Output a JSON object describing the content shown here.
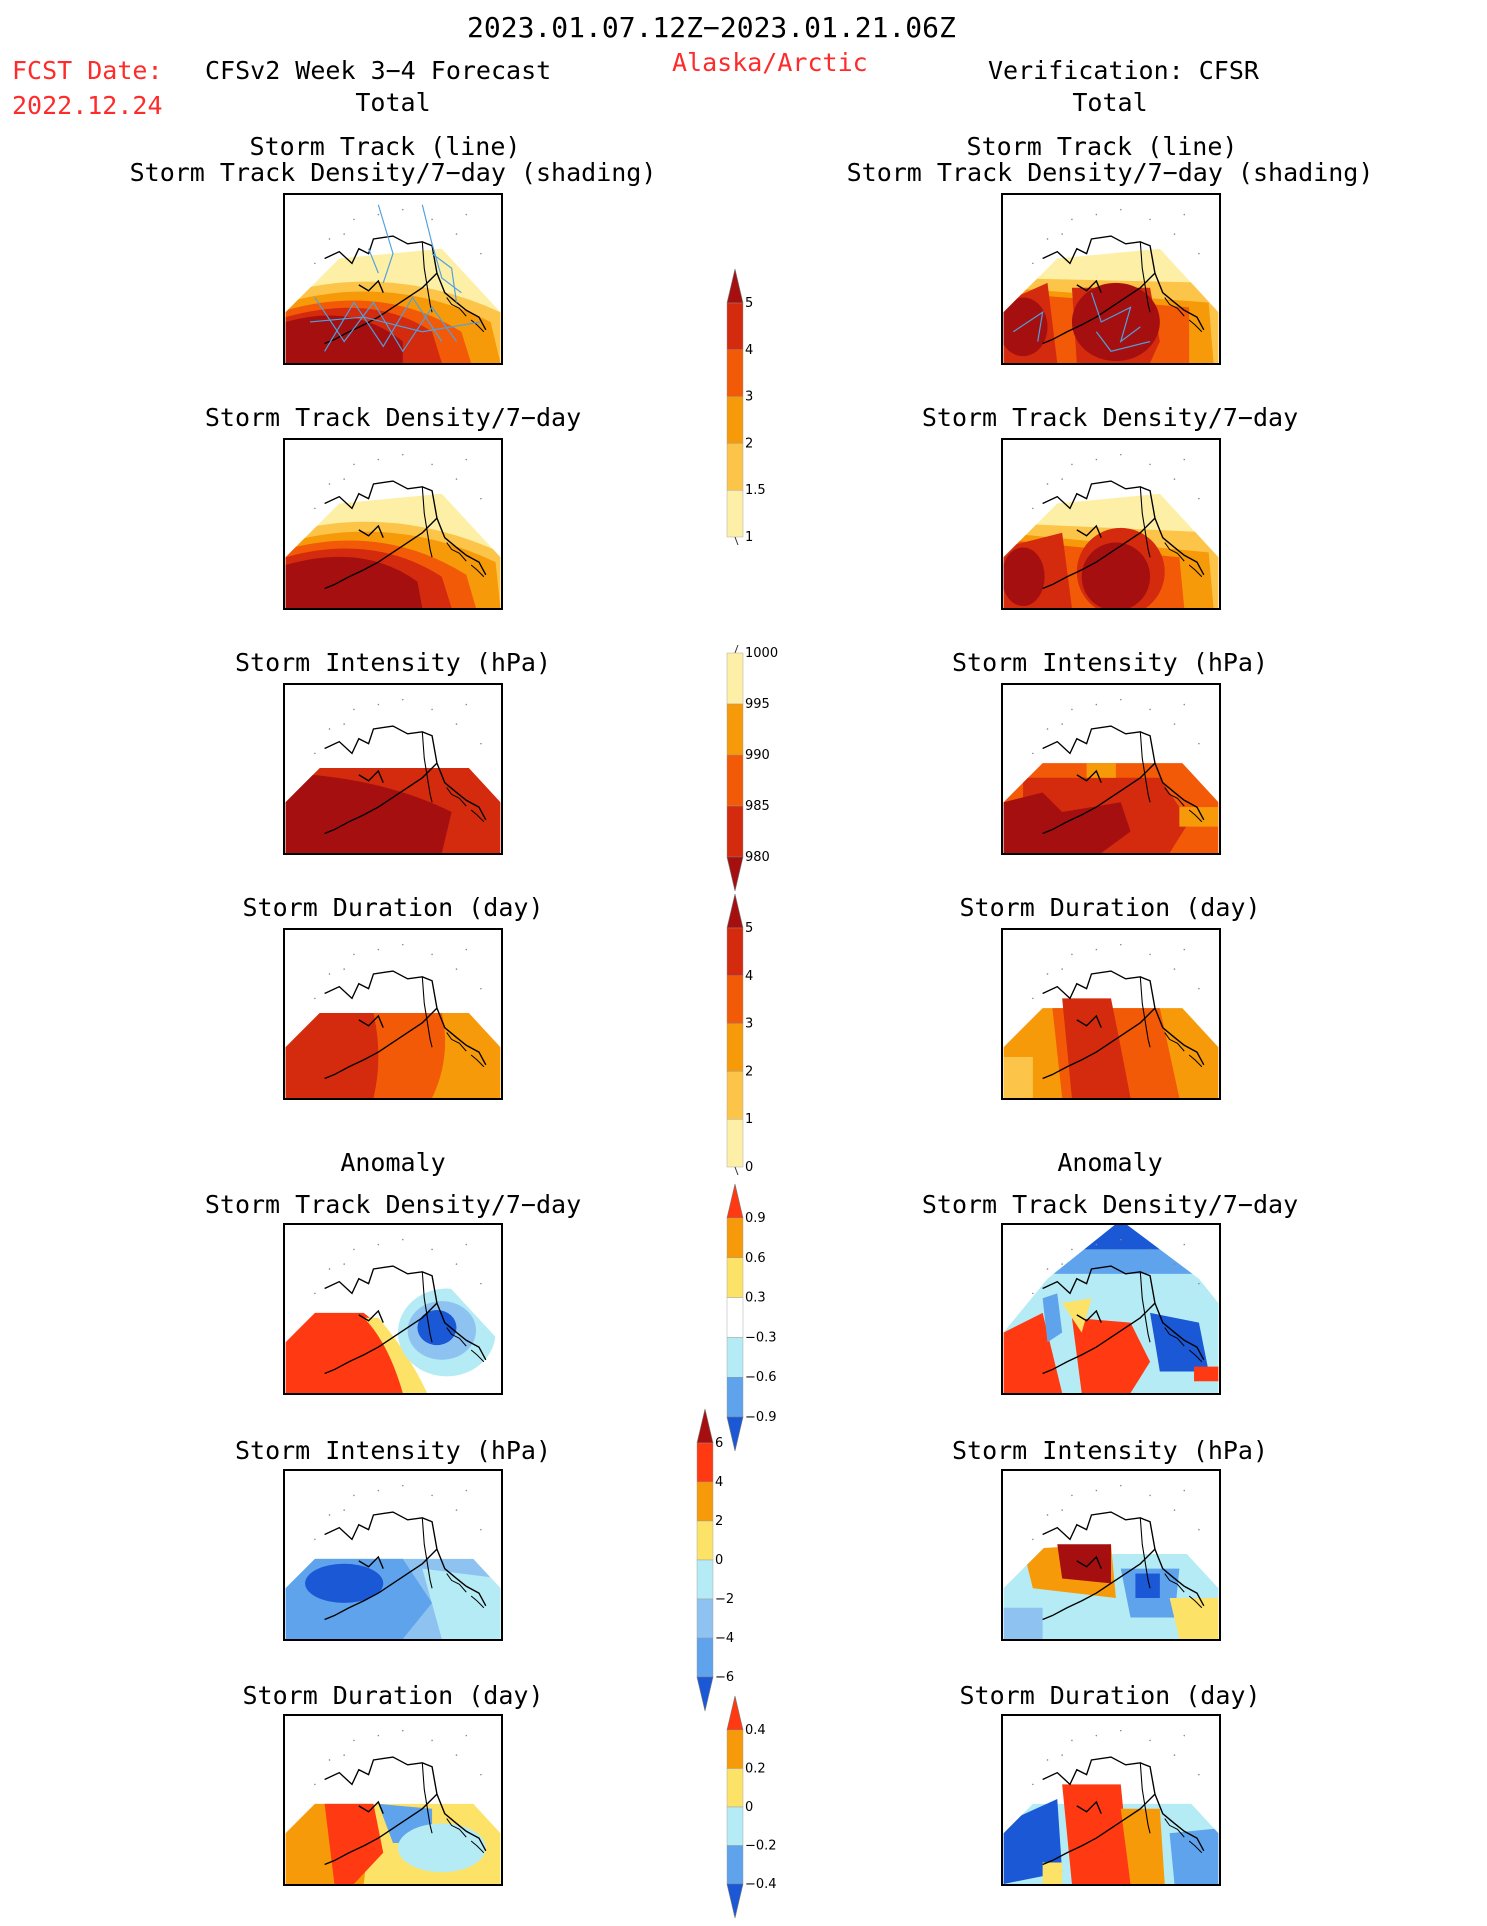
{
  "header": {
    "date_range": "2023.01.07.12Z−2023.01.21.06Z",
    "fcst_label": "FCST Date:",
    "fcst_date": "2022.12.24",
    "forecast_title": "CFSv2 Week 3−4 Forecast",
    "region": "Alaska/Arctic",
    "verification_title": "Verification: CFSR",
    "left_total": "Total",
    "right_total": "Total",
    "left_anomaly": "Anomaly",
    "right_anomaly": "Anomaly"
  },
  "panels": {
    "track_title_line1": "Storm Track (line)",
    "track_title_line2": "Storm Track Density/7−day (shading)",
    "density_title": "Storm Track Density/7−day",
    "intensity_title": "Storm Intensity (hPa)",
    "duration_title": "Storm Duration (day)"
  },
  "colorbars": {
    "density_total": {
      "labels": [
        "5",
        "4",
        "3",
        "2",
        "1.5",
        "1"
      ],
      "colors": [
        "#a50f0f",
        "#d42a0d",
        "#f25a08",
        "#f79a0a",
        "#fcc54a",
        "#fdf0a6"
      ]
    },
    "intensity_total": {
      "labels": [
        "1000",
        "995",
        "990",
        "985",
        "980"
      ],
      "colors": [
        "#fdf0a6",
        "#f79a0a",
        "#f25a08",
        "#d42a0d",
        "#a50f0f"
      ]
    },
    "duration_total": {
      "labels": [
        "5",
        "4",
        "3",
        "2",
        "1",
        "0"
      ],
      "colors": [
        "#a50f0f",
        "#d42a0d",
        "#f25a08",
        "#f79a0a",
        "#fcc54a",
        "#fdf0a6"
      ]
    },
    "density_anom": {
      "labels": [
        "0.9",
        "0.6",
        "0.3",
        "−0.3",
        "−0.6",
        "−0.9"
      ],
      "colors": [
        "#ff3a12",
        "#f79a0a",
        "#fde268",
        "#ffffff",
        "#b5ebf5",
        "#5ea3ec",
        "#1a58d6"
      ]
    },
    "intensity_anom": {
      "labels": [
        "6",
        "4",
        "2",
        "0",
        "−2",
        "−4",
        "−6"
      ],
      "colors": [
        "#a50f0f",
        "#ff3a12",
        "#f79a0a",
        "#fde268",
        "#b5ebf5",
        "#8ec3f1",
        "#5ea3ec",
        "#1a58d6"
      ]
    },
    "duration_anom": {
      "labels": [
        "0.4",
        "0.2",
        "0",
        "−0.2",
        "−0.4"
      ],
      "colors": [
        "#ff3a12",
        "#f79a0a",
        "#fde268",
        "#b5ebf5",
        "#5ea3ec",
        "#1a58d6"
      ]
    }
  }
}
